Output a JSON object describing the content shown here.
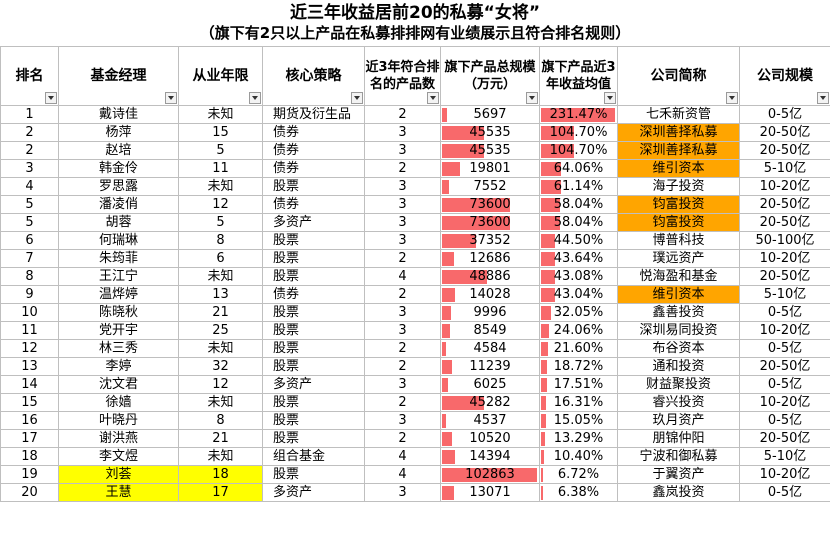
{
  "title_line1": "近三年收益居前20的私募“女将”",
  "title_line2": "（旗下有2只以上产品在私募排排网有业绩展示且符合排名规则）",
  "headers": {
    "rank": "排名",
    "manager": "基金经理",
    "years": "从业年限",
    "strategy": "核心策略",
    "count": "近3年符合排名的产品数",
    "scale": "旗下产品总规模（万元）",
    "return": "旗下产品近3年收益均值",
    "company": "公司简称",
    "size": "公司规模"
  },
  "colors": {
    "bar": "#f8696b",
    "highlight_company": "#ffa500",
    "highlight_manager": "#ffff00"
  },
  "max_scale": 102863,
  "max_return": 231.47,
  "rows": [
    {
      "rank": "1",
      "manager": "戴诗佳",
      "years": "未知",
      "strategy": "期货及衍生品",
      "count": "2",
      "scale": "5697",
      "scale_v": 5697,
      "ret": "231.47%",
      "ret_v": 231.47,
      "company": "七禾新资管",
      "size": "0-5亿",
      "co_hl": false,
      "mgr_hl": false
    },
    {
      "rank": "2",
      "manager": "杨萍",
      "years": "15",
      "strategy": "债券",
      "count": "3",
      "scale": "45535",
      "scale_v": 45535,
      "ret": "104.70%",
      "ret_v": 104.7,
      "company": "深圳善择私募",
      "size": "20-50亿",
      "co_hl": true,
      "mgr_hl": false
    },
    {
      "rank": "2",
      "manager": "赵培",
      "years": "5",
      "strategy": "债券",
      "count": "3",
      "scale": "45535",
      "scale_v": 45535,
      "ret": "104.70%",
      "ret_v": 104.7,
      "company": "深圳善择私募",
      "size": "20-50亿",
      "co_hl": true,
      "mgr_hl": false
    },
    {
      "rank": "3",
      "manager": "韩金伶",
      "years": "11",
      "strategy": "债券",
      "count": "2",
      "scale": "19801",
      "scale_v": 19801,
      "ret": "64.06%",
      "ret_v": 64.06,
      "company": "维引资本",
      "size": "5-10亿",
      "co_hl": true,
      "mgr_hl": false
    },
    {
      "rank": "4",
      "manager": "罗思露",
      "years": "未知",
      "strategy": "股票",
      "count": "3",
      "scale": "7552",
      "scale_v": 7552,
      "ret": "61.14%",
      "ret_v": 61.14,
      "company": "海子投资",
      "size": "10-20亿",
      "co_hl": false,
      "mgr_hl": false
    },
    {
      "rank": "5",
      "manager": "潘凌俏",
      "years": "12",
      "strategy": "债券",
      "count": "3",
      "scale": "73600",
      "scale_v": 73600,
      "ret": "58.04%",
      "ret_v": 58.04,
      "company": "钧富投资",
      "size": "20-50亿",
      "co_hl": true,
      "mgr_hl": false
    },
    {
      "rank": "5",
      "manager": "胡蓉",
      "years": "5",
      "strategy": "多资产",
      "count": "3",
      "scale": "73600",
      "scale_v": 73600,
      "ret": "58.04%",
      "ret_v": 58.04,
      "company": "钧富投资",
      "size": "20-50亿",
      "co_hl": true,
      "mgr_hl": false
    },
    {
      "rank": "6",
      "manager": "何瑞琳",
      "years": "8",
      "strategy": "股票",
      "count": "3",
      "scale": "37352",
      "scale_v": 37352,
      "ret": "44.50%",
      "ret_v": 44.5,
      "company": "博普科技",
      "size": "50-100亿",
      "co_hl": false,
      "mgr_hl": false
    },
    {
      "rank": "7",
      "manager": "朱筠菲",
      "years": "6",
      "strategy": "股票",
      "count": "2",
      "scale": "12686",
      "scale_v": 12686,
      "ret": "43.64%",
      "ret_v": 43.64,
      "company": "璞远资产",
      "size": "10-20亿",
      "co_hl": false,
      "mgr_hl": false
    },
    {
      "rank": "8",
      "manager": "王江宁",
      "years": "未知",
      "strategy": "股票",
      "count": "4",
      "scale": "48886",
      "scale_v": 48886,
      "ret": "43.08%",
      "ret_v": 43.08,
      "company": "悦海盈和基金",
      "size": "20-50亿",
      "co_hl": false,
      "mgr_hl": false
    },
    {
      "rank": "9",
      "manager": "温烨婷",
      "years": "13",
      "strategy": "债券",
      "count": "2",
      "scale": "14028",
      "scale_v": 14028,
      "ret": "43.04%",
      "ret_v": 43.04,
      "company": "维引资本",
      "size": "5-10亿",
      "co_hl": true,
      "mgr_hl": false
    },
    {
      "rank": "10",
      "manager": "陈晓秋",
      "years": "21",
      "strategy": "股票",
      "count": "3",
      "scale": "9996",
      "scale_v": 9996,
      "ret": "32.05%",
      "ret_v": 32.05,
      "company": "鑫善投资",
      "size": "0-5亿",
      "co_hl": false,
      "mgr_hl": false
    },
    {
      "rank": "11",
      "manager": "党开宇",
      "years": "25",
      "strategy": "股票",
      "count": "3",
      "scale": "8549",
      "scale_v": 8549,
      "ret": "24.06%",
      "ret_v": 24.06,
      "company": "深圳易同投资",
      "size": "10-20亿",
      "co_hl": false,
      "mgr_hl": false
    },
    {
      "rank": "12",
      "manager": "林三秀",
      "years": "未知",
      "strategy": "股票",
      "count": "2",
      "scale": "4584",
      "scale_v": 4584,
      "ret": "21.60%",
      "ret_v": 21.6,
      "company": "布谷资本",
      "size": "0-5亿",
      "co_hl": false,
      "mgr_hl": false
    },
    {
      "rank": "13",
      "manager": "李婷",
      "years": "32",
      "strategy": "股票",
      "count": "2",
      "scale": "11239",
      "scale_v": 11239,
      "ret": "18.72%",
      "ret_v": 18.72,
      "company": "通和投资",
      "size": "20-50亿",
      "co_hl": false,
      "mgr_hl": false
    },
    {
      "rank": "14",
      "manager": "沈文君",
      "years": "12",
      "strategy": "多资产",
      "count": "3",
      "scale": "6025",
      "scale_v": 6025,
      "ret": "17.51%",
      "ret_v": 17.51,
      "company": "财益聚投资",
      "size": "0-5亿",
      "co_hl": false,
      "mgr_hl": false
    },
    {
      "rank": "15",
      "manager": "徐嫱",
      "years": "未知",
      "strategy": "股票",
      "count": "2",
      "scale": "45282",
      "scale_v": 45282,
      "ret": "16.31%",
      "ret_v": 16.31,
      "company": "睿兴投资",
      "size": "10-20亿",
      "co_hl": false,
      "mgr_hl": false
    },
    {
      "rank": "16",
      "manager": "叶晓丹",
      "years": "8",
      "strategy": "股票",
      "count": "3",
      "scale": "4537",
      "scale_v": 4537,
      "ret": "15.05%",
      "ret_v": 15.05,
      "company": "玖月资产",
      "size": "0-5亿",
      "co_hl": false,
      "mgr_hl": false
    },
    {
      "rank": "17",
      "manager": "谢洪燕",
      "years": "21",
      "strategy": "股票",
      "count": "2",
      "scale": "10520",
      "scale_v": 10520,
      "ret": "13.29%",
      "ret_v": 13.29,
      "company": "朋锦仲阳",
      "size": "20-50亿",
      "co_hl": false,
      "mgr_hl": false
    },
    {
      "rank": "18",
      "manager": "李文煜",
      "years": "未知",
      "strategy": "组合基金",
      "count": "4",
      "scale": "14394",
      "scale_v": 14394,
      "ret": "10.40%",
      "ret_v": 10.4,
      "company": "宁波和御私募",
      "size": "5-10亿",
      "co_hl": false,
      "mgr_hl": false
    },
    {
      "rank": "19",
      "manager": "刘荟",
      "years": "18",
      "strategy": "股票",
      "count": "4",
      "scale": "102863",
      "scale_v": 102863,
      "ret": "6.72%",
      "ret_v": 6.72,
      "company": "于翼资产",
      "size": "10-20亿",
      "co_hl": false,
      "mgr_hl": true
    },
    {
      "rank": "20",
      "manager": "王慧",
      "years": "17",
      "strategy": "多资产",
      "count": "3",
      "scale": "13071",
      "scale_v": 13071,
      "ret": "6.38%",
      "ret_v": 6.38,
      "company": "鑫岚投资",
      "size": "0-5亿",
      "co_hl": false,
      "mgr_hl": true
    }
  ]
}
